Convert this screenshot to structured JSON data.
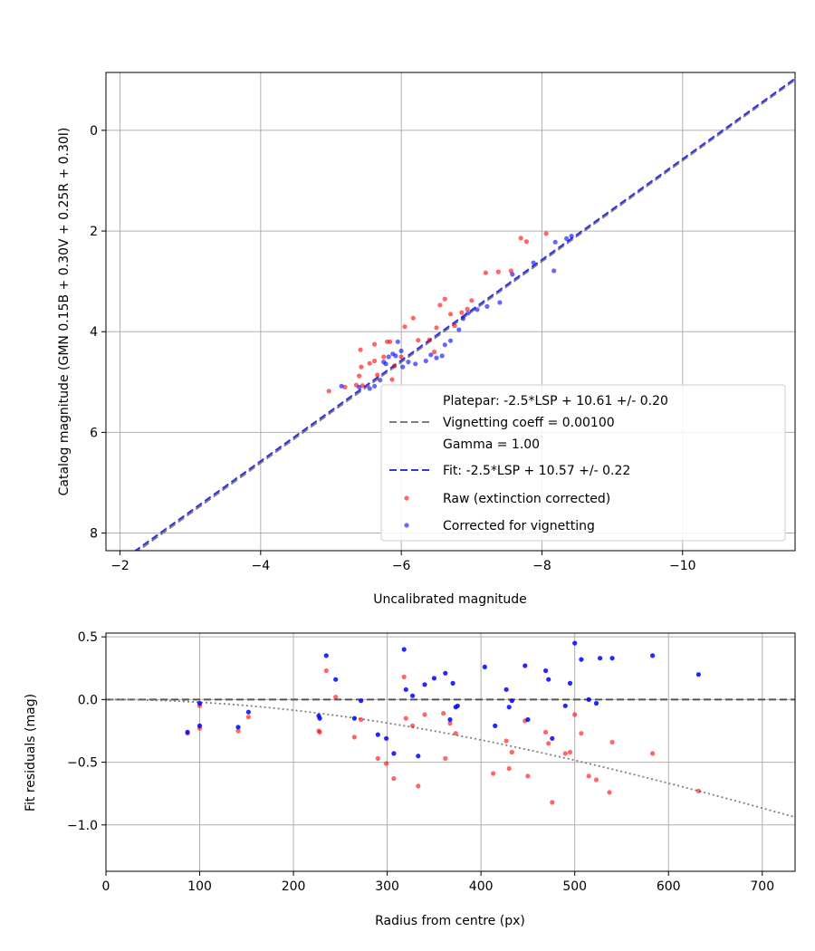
{
  "chart_data": [
    {
      "type": "scatter",
      "xlabel": "Uncalibrated magnitude",
      "ylabel": "Catalog magnitude (GMN 0.15B + 0.30V + 0.25R + 0.30I)",
      "xlim": [
        -1.8,
        -11.6
      ],
      "ylim": [
        8.35,
        -1.15
      ],
      "x_ticks": [
        -2,
        -4,
        -6,
        -8,
        -10
      ],
      "x_tick_labels": [
        "−2",
        "−4",
        "−6",
        "−8",
        "−10"
      ],
      "y_ticks": [
        0,
        2,
        4,
        6,
        8
      ],
      "y_tick_labels": [
        "0",
        "2",
        "4",
        "6",
        "8"
      ],
      "grid": true,
      "legend_position": "lower-right",
      "legend": [
        {
          "label": "Platepar: -2.5*LSP + 10.61 +/- 0.20",
          "kind": "none"
        },
        {
          "label": "Vignetting coeff = 0.00100",
          "kind": "line",
          "style": "dashed",
          "color": "#7f7f7f"
        },
        {
          "label": "Gamma = 1.00",
          "kind": "none"
        },
        {
          "label": "Fit: -2.5*LSP + 10.57 +/- 0.22",
          "kind": "line",
          "style": "dashed",
          "color": "#3333e6"
        },
        {
          "label": "Raw (extinction corrected)",
          "kind": "point",
          "color": "#ff0000"
        },
        {
          "label": "Corrected for vignetting",
          "kind": "point",
          "color": "#0000ff"
        }
      ],
      "lines": [
        {
          "name": "Platepar: -2.5*LSP + 10.61 +/- 0.20",
          "color": "#7f7f7f",
          "style": "dashed",
          "x": [
            -2.2,
            -11.6
          ],
          "y": [
            8.41,
            -1.0
          ]
        },
        {
          "name": "Fit: -2.5*LSP + 10.57 +/- 0.22",
          "color": "#3333e6",
          "style": "dashed",
          "x": [
            -2.2,
            -11.6
          ],
          "y": [
            8.37,
            -1.03
          ]
        }
      ],
      "series": [
        {
          "name": "Raw (extinction corrected)",
          "color": "#ff0000",
          "points": [
            [
              -4.97,
              5.18
            ],
            [
              -5.2,
              5.1
            ],
            [
              -5.36,
              5.06
            ],
            [
              -5.4,
              4.88
            ],
            [
              -5.43,
              4.7
            ],
            [
              -5.45,
              5.07
            ],
            [
              -5.42,
              4.36
            ],
            [
              -5.55,
              4.63
            ],
            [
              -5.62,
              4.58
            ],
            [
              -5.62,
              4.25
            ],
            [
              -5.66,
              4.86
            ],
            [
              -5.75,
              4.5
            ],
            [
              -5.8,
              4.2
            ],
            [
              -5.84,
              4.2
            ],
            [
              -5.87,
              4.95
            ],
            [
              -5.9,
              4.68
            ],
            [
              -6.0,
              4.5
            ],
            [
              -6.05,
              3.9
            ],
            [
              -6.17,
              3.73
            ],
            [
              -6.24,
              4.17
            ],
            [
              -6.4,
              4.16
            ],
            [
              -6.47,
              4.4
            ],
            [
              -6.5,
              3.92
            ],
            [
              -6.55,
              3.47
            ],
            [
              -6.62,
              3.35
            ],
            [
              -6.7,
              3.65
            ],
            [
              -6.76,
              3.88
            ],
            [
              -6.86,
              3.62
            ],
            [
              -6.94,
              3.55
            ],
            [
              -7.0,
              3.38
            ],
            [
              -7.2,
              2.83
            ],
            [
              -7.38,
              2.81
            ],
            [
              -7.56,
              2.79
            ],
            [
              -7.7,
              2.14
            ],
            [
              -7.78,
              2.21
            ],
            [
              -8.06,
              2.05
            ]
          ]
        },
        {
          "name": "Corrected for vignetting",
          "color": "#0000ff",
          "points": [
            [
              -5.15,
              5.08
            ],
            [
              -5.4,
              5.1
            ],
            [
              -5.55,
              5.13
            ],
            [
              -5.62,
              5.08
            ],
            [
              -5.7,
              4.96
            ],
            [
              -5.75,
              4.6
            ],
            [
              -5.78,
              4.64
            ],
            [
              -5.82,
              4.5
            ],
            [
              -5.88,
              4.44
            ],
            [
              -5.92,
              4.48
            ],
            [
              -5.95,
              4.2
            ],
            [
              -6.0,
              4.38
            ],
            [
              -6.02,
              4.7
            ],
            [
              -6.1,
              4.6
            ],
            [
              -6.2,
              4.64
            ],
            [
              -6.35,
              4.58
            ],
            [
              -6.42,
              4.46
            ],
            [
              -6.5,
              4.52
            ],
            [
              -6.58,
              4.48
            ],
            [
              -6.62,
              4.26
            ],
            [
              -6.7,
              4.18
            ],
            [
              -6.82,
              3.96
            ],
            [
              -6.88,
              3.74
            ],
            [
              -6.95,
              3.63
            ],
            [
              -7.08,
              3.56
            ],
            [
              -7.22,
              3.5
            ],
            [
              -7.4,
              3.42
            ],
            [
              -7.58,
              2.86
            ],
            [
              -7.88,
              2.63
            ],
            [
              -8.17,
              2.79
            ],
            [
              -8.19,
              2.22
            ],
            [
              -8.35,
              2.15
            ],
            [
              -8.42,
              2.1
            ]
          ]
        }
      ]
    },
    {
      "type": "scatter",
      "xlabel": "Radius from centre (px)",
      "ylabel": "Fit residuals (mag)",
      "xlim": [
        0,
        735
      ],
      "ylim": [
        -1.37,
        0.53
      ],
      "x_ticks": [
        0,
        100,
        200,
        300,
        400,
        500,
        600,
        700
      ],
      "x_tick_labels": [
        "0",
        "100",
        "200",
        "300",
        "400",
        "500",
        "600",
        "700"
      ],
      "y_ticks": [
        0.5,
        0.0,
        -0.5,
        -1.0
      ],
      "y_tick_labels": [
        "0.5",
        "0.0",
        "−0.5",
        "−1.0"
      ],
      "grid": true,
      "lines": [
        {
          "name": "zero",
          "color": "#555555",
          "style": "dashed",
          "function": "zero"
        },
        {
          "name": "vignetting",
          "color": "#7f7f7f",
          "style": "dotted",
          "function": "vignetting",
          "coeff": 0.001
        }
      ],
      "series": [
        {
          "name": "Raw (extinction corrected)",
          "color": "#ff0000",
          "points": [
            [
              87,
              -0.27
            ],
            [
              100,
              -0.05
            ],
            [
              100,
              -0.23
            ],
            [
              141,
              -0.25
            ],
            [
              152,
              -0.14
            ],
            [
              227,
              -0.25
            ],
            [
              228,
              -0.26
            ],
            [
              235,
              0.23
            ],
            [
              245,
              0.02
            ],
            [
              265,
              -0.3
            ],
            [
              272,
              -0.16
            ],
            [
              290,
              -0.47
            ],
            [
              299,
              -0.51
            ],
            [
              307,
              -0.63
            ],
            [
              318,
              0.18
            ],
            [
              320,
              -0.15
            ],
            [
              327,
              -0.21
            ],
            [
              333,
              -0.69
            ],
            [
              340,
              -0.12
            ],
            [
              360,
              -0.11
            ],
            [
              362,
              -0.47
            ],
            [
              367,
              -0.19
            ],
            [
              373,
              -0.27
            ],
            [
              413,
              -0.59
            ],
            [
              427,
              -0.33
            ],
            [
              430,
              -0.55
            ],
            [
              433,
              -0.42
            ],
            [
              447,
              -0.17
            ],
            [
              450,
              -0.61
            ],
            [
              469,
              -0.26
            ],
            [
              472,
              -0.35
            ],
            [
              476,
              -0.82
            ],
            [
              490,
              -0.43
            ],
            [
              495,
              -0.42
            ],
            [
              500,
              -0.12
            ],
            [
              507,
              -0.27
            ],
            [
              515,
              -0.61
            ],
            [
              523,
              -0.64
            ],
            [
              537,
              -0.74
            ],
            [
              540,
              -0.34
            ],
            [
              583,
              -0.43
            ],
            [
              632,
              -0.73
            ]
          ]
        },
        {
          "name": "Corrected for vignetting",
          "color": "#0000ff",
          "points": [
            [
              87,
              -0.26
            ],
            [
              100,
              -0.03
            ],
            [
              100,
              -0.21
            ],
            [
              141,
              -0.22
            ],
            [
              152,
              -0.1
            ],
            [
              227,
              -0.13
            ],
            [
              228,
              -0.15
            ],
            [
              235,
              0.35
            ],
            [
              245,
              0.16
            ],
            [
              265,
              -0.15
            ],
            [
              272,
              -0.01
            ],
            [
              290,
              -0.28
            ],
            [
              299,
              -0.31
            ],
            [
              307,
              -0.43
            ],
            [
              318,
              0.4
            ],
            [
              320,
              0.08
            ],
            [
              327,
              0.03
            ],
            [
              333,
              -0.45
            ],
            [
              340,
              0.12
            ],
            [
              350,
              0.17
            ],
            [
              362,
              0.21
            ],
            [
              367,
              -0.16
            ],
            [
              370,
              0.13
            ],
            [
              373,
              -0.06
            ],
            [
              375,
              -0.05
            ],
            [
              404,
              0.26
            ],
            [
              415,
              -0.21
            ],
            [
              427,
              0.08
            ],
            [
              430,
              -0.06
            ],
            [
              433,
              -0.01
            ],
            [
              447,
              0.27
            ],
            [
              450,
              -0.16
            ],
            [
              469,
              0.23
            ],
            [
              472,
              0.16
            ],
            [
              476,
              -0.31
            ],
            [
              490,
              -0.05
            ],
            [
              495,
              0.13
            ],
            [
              500,
              0.45
            ],
            [
              507,
              0.32
            ],
            [
              515,
              0.0
            ],
            [
              523,
              -0.03
            ],
            [
              527,
              0.33
            ],
            [
              540,
              0.33
            ],
            [
              583,
              0.35
            ],
            [
              632,
              0.2
            ]
          ]
        }
      ]
    }
  ]
}
